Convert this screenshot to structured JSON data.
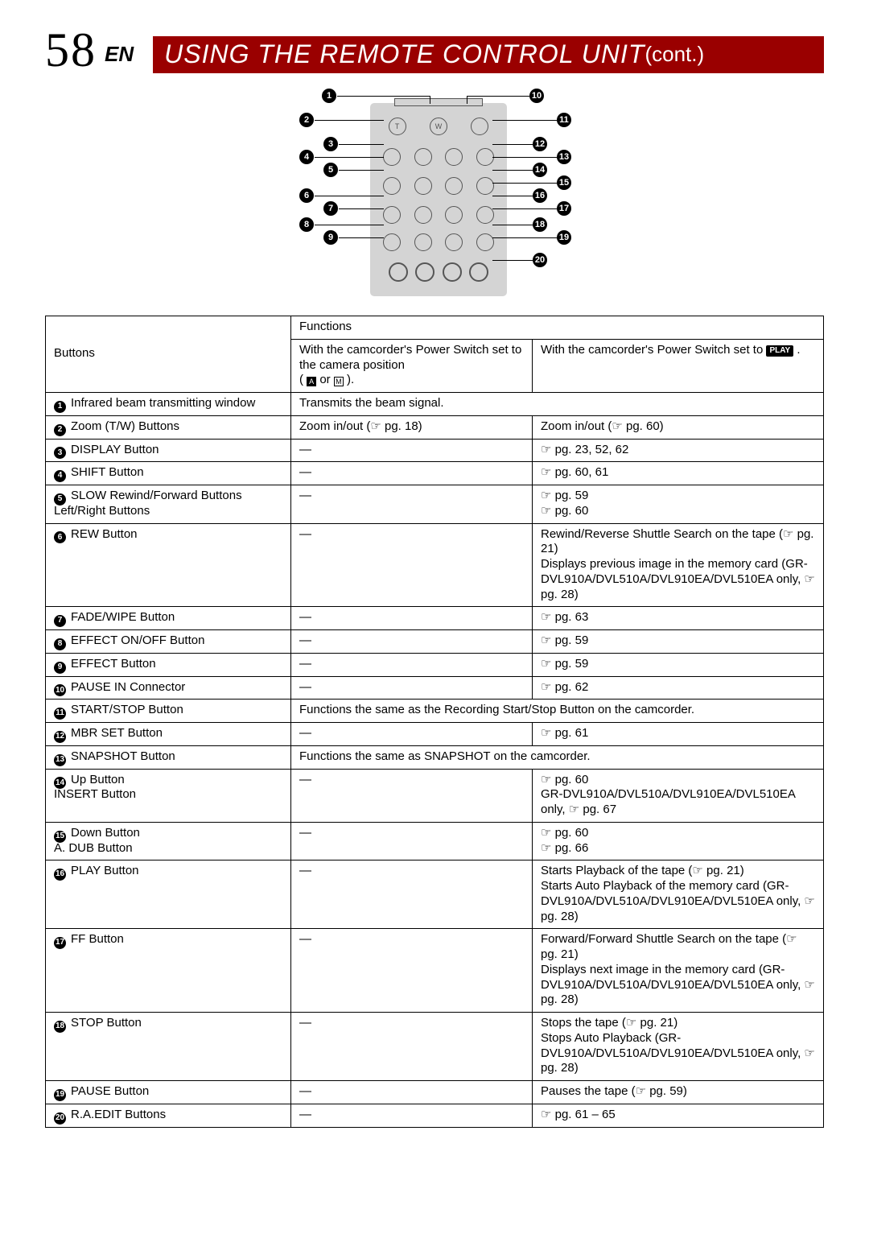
{
  "page_number": "58",
  "page_lang": "EN",
  "title_main": "USING THE REMOTE CONTROL UNIT ",
  "title_cont": "(cont.)",
  "diagram": {
    "labels": [
      "1",
      "2",
      "3",
      "4",
      "5",
      "6",
      "7",
      "8",
      "9",
      "10",
      "11",
      "12",
      "13",
      "14",
      "15",
      "16",
      "17",
      "18",
      "19",
      "20"
    ]
  },
  "table": {
    "header": {
      "functions": "Functions",
      "buttons": "Buttons",
      "cam_pos": "With the camcorder's Power Switch set to the camera position",
      "cam_pos_suffix": "( A or M ).",
      "play_pos_prefix": "With the camcorder's Power Switch set to ",
      "play_badge": "PLAY",
      "play_pos_suffix": " ."
    },
    "rows": [
      {
        "n": "1",
        "label": "Infrared beam transmitting window",
        "span": "Transmits the beam signal."
      },
      {
        "n": "2",
        "label": "Zoom (T/W) Buttons",
        "c1": "Zoom in/out (☞ pg. 18)",
        "c2": "Zoom in/out (☞ pg. 60)"
      },
      {
        "n": "3",
        "label": "DISPLAY Button",
        "c1": "—",
        "c2": "☞ pg. 23, 52, 62"
      },
      {
        "n": "4",
        "label": "SHIFT Button",
        "c1": "—",
        "c2": "☞ pg. 60, 61"
      },
      {
        "n": "5",
        "label": "SLOW Rewind/Forward Buttons\nLeft/Right Buttons",
        "c1": "—",
        "c2": "☞ pg. 59\n☞ pg. 60"
      },
      {
        "n": "6",
        "label": "REW Button",
        "c1": "—",
        "c2": "Rewind/Reverse Shuttle Search on the tape (☞ pg. 21)\nDisplays previous image in the memory card (GR-DVL910A/DVL510A/DVL910EA/DVL510EA only, ☞ pg. 28)"
      },
      {
        "n": "7",
        "label": "FADE/WIPE Button",
        "c1": "—",
        "c2": "☞ pg. 63"
      },
      {
        "n": "8",
        "label": "EFFECT ON/OFF Button",
        "c1": "—",
        "c2": "☞ pg. 59"
      },
      {
        "n": "9",
        "label": "EFFECT Button",
        "c1": "—",
        "c2": "☞ pg. 59"
      },
      {
        "n": "10",
        "label": "PAUSE IN Connector",
        "c1": "—",
        "c2": "☞ pg. 62"
      },
      {
        "n": "11",
        "label": "START/STOP Button",
        "span": "Functions the same as the Recording Start/Stop Button on the camcorder."
      },
      {
        "n": "12",
        "label": "MBR SET Button",
        "c1": "—",
        "c2": "☞ pg. 61"
      },
      {
        "n": "13",
        "label": "SNAPSHOT Button",
        "span": "Functions the same as SNAPSHOT on the camcorder."
      },
      {
        "n": "14",
        "label": "Up Button\nINSERT Button",
        "c1": "—",
        "c2": "☞ pg. 60\nGR-DVL910A/DVL510A/DVL910EA/DVL510EA only, ☞ pg. 67"
      },
      {
        "n": "15",
        "label": "Down Button\nA. DUB Button",
        "c1": "—",
        "c2": "☞ pg. 60\n☞ pg. 66"
      },
      {
        "n": "16",
        "label": "PLAY Button",
        "c1": "—",
        "c2": "Starts Playback of the tape (☞ pg. 21)\nStarts Auto Playback of the memory card (GR-DVL910A/DVL510A/DVL910EA/DVL510EA only, ☞ pg. 28)"
      },
      {
        "n": "17",
        "label": "FF Button",
        "c1": "—",
        "c2": "Forward/Forward Shuttle Search on the tape (☞ pg. 21)\nDisplays next image in the memory card (GR-DVL910A/DVL510A/DVL910EA/DVL510EA only, ☞ pg. 28)"
      },
      {
        "n": "18",
        "label": "STOP Button",
        "c1": "—",
        "c2": "Stops the tape (☞ pg. 21)\nStops Auto Playback (GR-DVL910A/DVL510A/DVL910EA/DVL510EA only, ☞ pg. 28)"
      },
      {
        "n": "19",
        "label": "PAUSE Button",
        "c1": "—",
        "c2": "Pauses the tape (☞ pg. 59)"
      },
      {
        "n": "20",
        "label": "R.A.EDIT Buttons",
        "c1": "—",
        "c2": "☞ pg. 61 – 65"
      }
    ]
  },
  "colors": {
    "title_bg": "#9a0000",
    "remote_bg": "#d4d4d4",
    "border": "#000000"
  }
}
